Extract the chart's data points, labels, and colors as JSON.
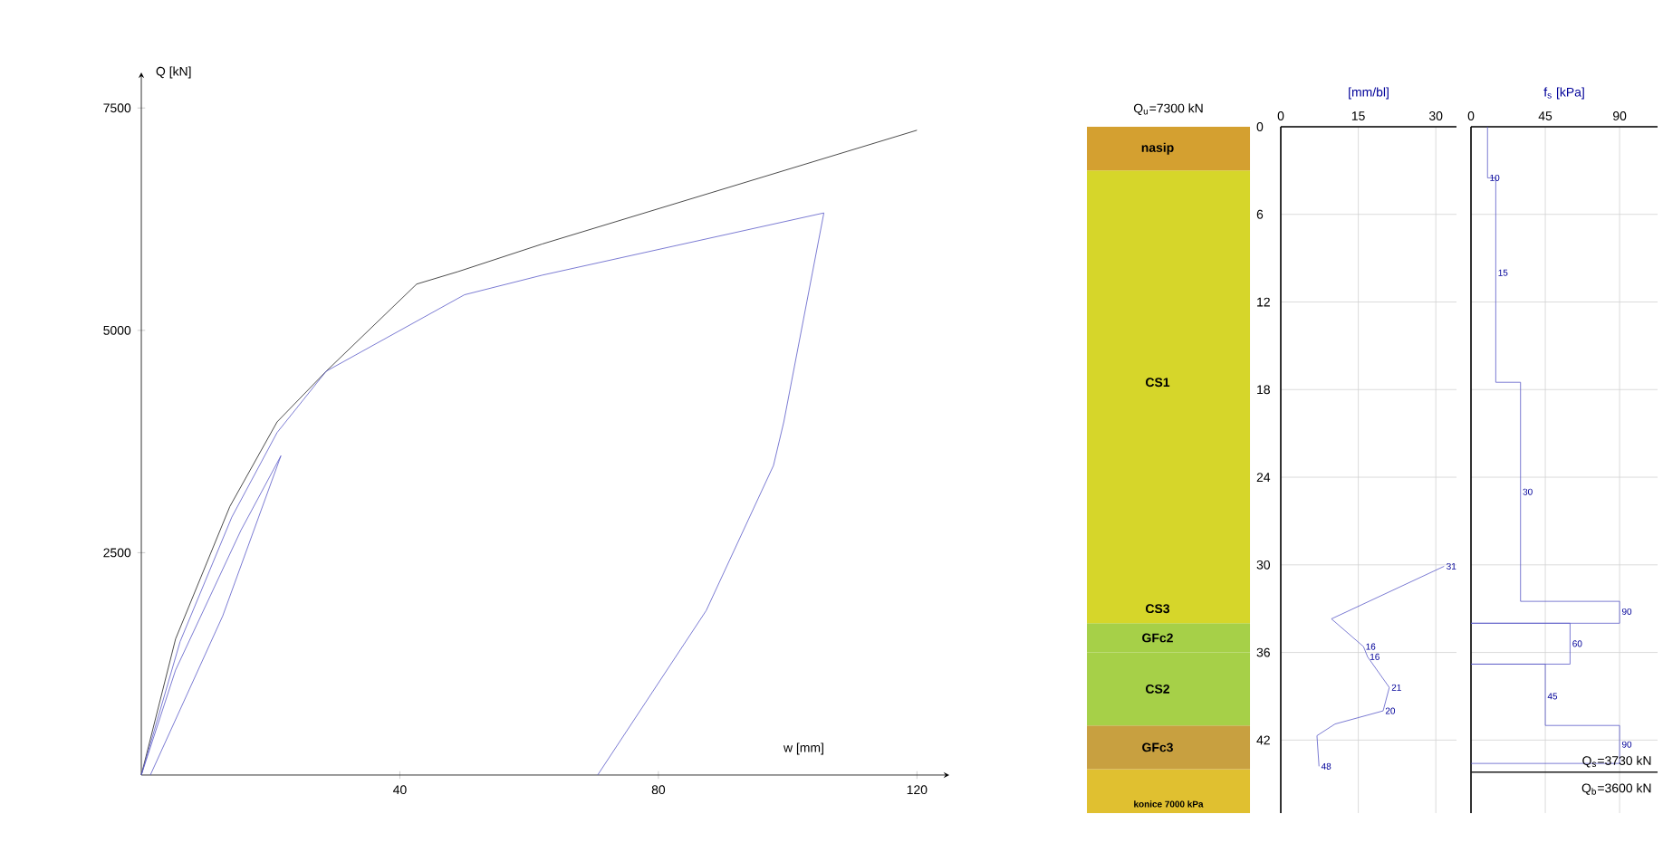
{
  "chart_data": [
    {
      "type": "line",
      "xlabel": "w [mm]",
      "ylabel": "Q [kN]",
      "xlim": [
        0,
        125
      ],
      "ylim": [
        0,
        7900
      ],
      "xticks": [
        40,
        80,
        120
      ],
      "yticks": [
        2500,
        5000,
        7500
      ],
      "series": [
        {
          "color": "#1e1e1e",
          "x": [
            0,
            5.3,
            13.7,
            21,
            28.6,
            42.6,
            49,
            62,
            120
          ],
          "values": [
            0,
            1530,
            3020,
            3970,
            4540,
            5520,
            5660,
            5970,
            7250
          ]
        },
        {
          "color": "#5a5ac8",
          "x": [
            0,
            6,
            14,
            21,
            28.6,
            50,
            62,
            105.6,
            99.4,
            97.8,
            87.4,
            70.6
          ],
          "values": [
            0,
            1500,
            2900,
            3850,
            4540,
            5400,
            5620,
            6320,
            3970,
            3480,
            1850,
            0
          ]
        },
        {
          "color": "#5a5ac8",
          "x": [
            0,
            5.3,
            15.4,
            21.6,
            12.6,
            1.4
          ],
          "values": [
            0,
            1180,
            2750,
            3590,
            1790,
            0
          ]
        }
      ]
    },
    {
      "type": "bar",
      "stacked": true,
      "title": "Q$_{u}$=7300 kN",
      "categories": [
        null
      ],
      "ylim": [
        47,
        0
      ],
      "yticks": [
        0,
        6,
        12,
        18,
        24,
        30,
        36,
        42
      ],
      "tick_labels": "y",
      "series": [
        {
          "name": "nasip",
          "color": "#d4a030",
          "values": [
            3
          ]
        },
        {
          "name": "CS1",
          "color": "#d6d62a",
          "values": [
            29
          ]
        },
        {
          "name": "CS3",
          "color": "#d6d62a",
          "values": [
            2
          ]
        },
        {
          "name": "GFc2",
          "color": "#a6d048",
          "values": [
            2
          ]
        },
        {
          "name": "CS2",
          "color": "#a6d048",
          "values": [
            5
          ]
        },
        {
          "name": "GFc3",
          "color": "#c8a040",
          "values": [
            3
          ]
        },
        {
          "color": "#e0c030",
          "values": [
            3
          ]
        }
      ],
      "annotations": [
        "konice 7000 kPa"
      ]
    },
    {
      "type": "line",
      "xlabel": "[mm/bl]",
      "xlim": [
        0,
        34
      ],
      "ylim": [
        47,
        0
      ],
      "xticks": [
        0,
        15,
        30
      ],
      "yticks": [
        0,
        6,
        12,
        18,
        24,
        30,
        36,
        42
      ],
      "tick_labels": "x",
      "grid": true,
      "series": [
        {
          "color": "#5a5ac8",
          "x": [
            31.6,
            9.8,
            16,
            16.8,
            21,
            19.8,
            10.5,
            7,
            7.4
          ],
          "values": [
            30.1,
            33.7,
            35.6,
            36.3,
            38.4,
            40,
            40.9,
            41.7,
            43.8
          ]
        }
      ],
      "annotations": [
        {
          "text": "31",
          "x": 31.6,
          "y": 30.1
        },
        {
          "text": "16",
          "x": 16,
          "y": 35.6
        },
        {
          "text": "16",
          "x": 16.8,
          "y": 36.3
        },
        {
          "text": "21",
          "x": 21,
          "y": 38.4
        },
        {
          "text": "20",
          "x": 19.8,
          "y": 40
        },
        {
          "text": "48",
          "x": 7.4,
          "y": 43.8
        }
      ]
    },
    {
      "type": "line",
      "xlabel": "f$_{s}$ [kPa]",
      "xlim": [
        0,
        113
      ],
      "ylim": [
        47,
        0
      ],
      "xticks": [
        0,
        45,
        90
      ],
      "yticks": [
        0,
        6,
        12,
        18,
        24,
        30,
        36,
        42
      ],
      "tick_labels": "x",
      "grid": true,
      "series": [
        {
          "color": "#5a5ac8",
          "x": [
            10,
            10,
            15,
            15,
            30,
            30,
            90,
            90,
            0,
            60,
            60,
            0,
            45,
            45,
            90,
            90,
            0
          ],
          "values": [
            0,
            3.5,
            3.5,
            17.5,
            17.5,
            32.5,
            32.5,
            34,
            34,
            34,
            36.8,
            36.8,
            36.8,
            41,
            41,
            43.6,
            43.6
          ]
        }
      ],
      "ref_lines": [
        {
          "axis": "y",
          "value": 44.2,
          "color": "#1e1e1e"
        }
      ],
      "annotations": [
        {
          "text": "10",
          "x": 10,
          "y": 3.5
        },
        {
          "text": "15",
          "x": 15,
          "y": 10
        },
        {
          "text": "30",
          "x": 30,
          "y": 25
        },
        {
          "text": "90",
          "x": 90,
          "y": 33.2
        },
        {
          "text": "60",
          "x": 60,
          "y": 35.4
        },
        {
          "text": "45",
          "x": 45,
          "y": 39
        },
        {
          "text": "90",
          "x": 90,
          "y": 42.3
        },
        "Q$_{s}$=3730 kN",
        "Q$_{b}$=3600 kN"
      ]
    }
  ]
}
